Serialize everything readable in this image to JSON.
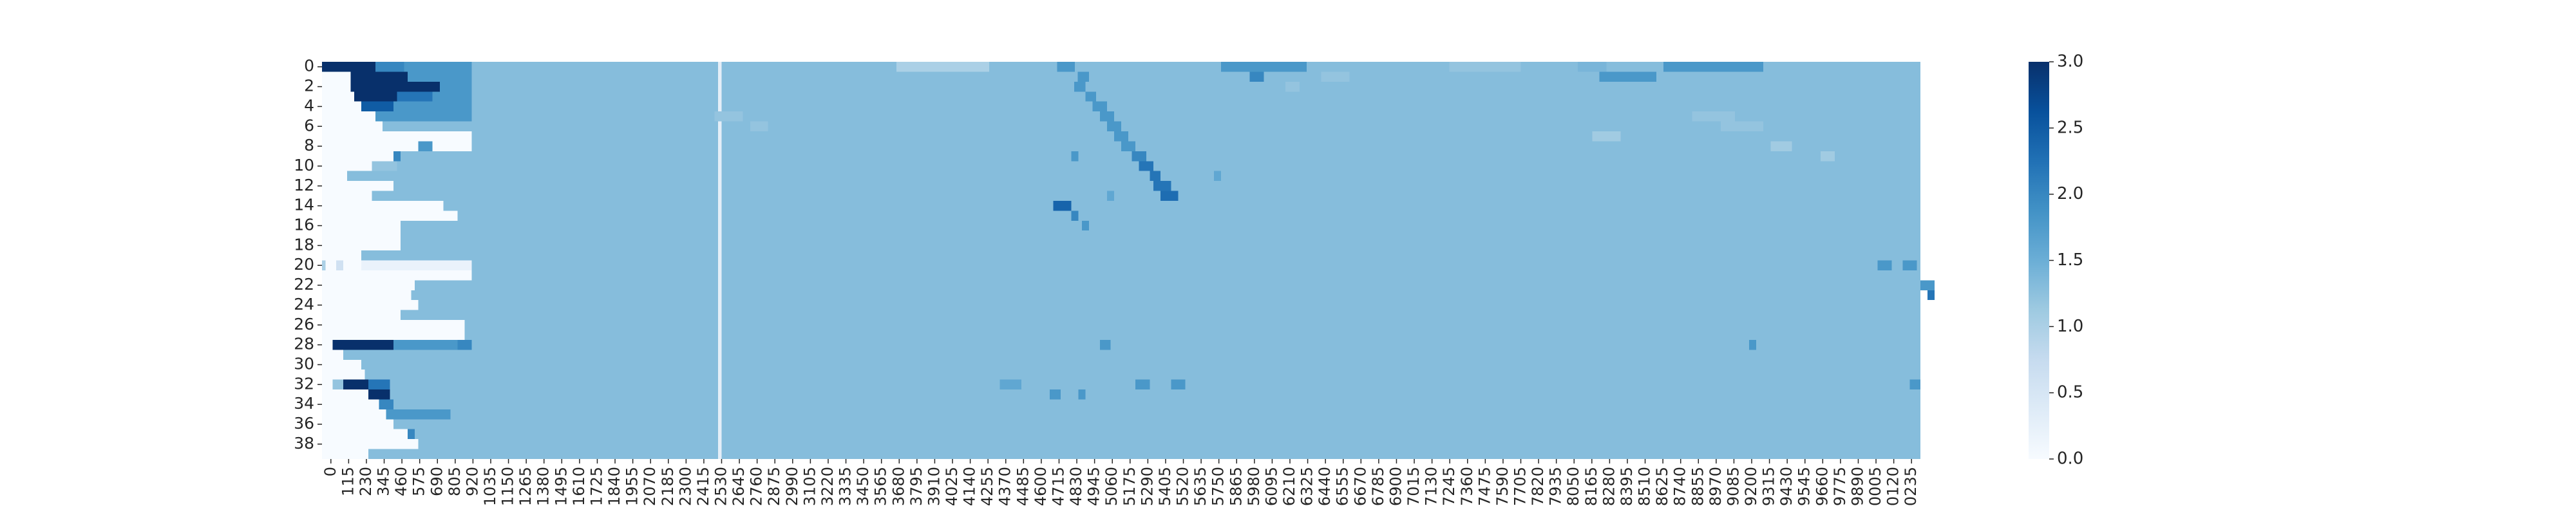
{
  "chart_data": {
    "type": "heatmap",
    "title": "",
    "xlabel": "",
    "ylabel": "",
    "colormap": "Blues",
    "color_low": "#f7fbff",
    "color_high": "#08306b",
    "vmin": 0.0,
    "vmax": 3.0,
    "n_rows": 40,
    "n_cols": 2240,
    "y_tick_labels": [
      "0",
      "2",
      "4",
      "6",
      "8",
      "10",
      "12",
      "14",
      "16",
      "18",
      "20",
      "22",
      "24",
      "26",
      "28",
      "30",
      "32",
      "34",
      "36",
      "38"
    ],
    "y_tick_rows": [
      0,
      2,
      4,
      6,
      8,
      10,
      12,
      14,
      16,
      18,
      20,
      22,
      24,
      26,
      28,
      30,
      32,
      34,
      36,
      38
    ],
    "x_tick_labels": [
      "0",
      "115",
      "230",
      "345",
      "460",
      "575",
      "690",
      "805",
      "920",
      "1035",
      "1150",
      "1265",
      "1380",
      "1495",
      "1610",
      "1725",
      "1840",
      "1955",
      "2070",
      "2185",
      "2300",
      "2415",
      "2530",
      "2645",
      "2760",
      "2875",
      "2990",
      "3105",
      "3220",
      "3335",
      "3450",
      "3565",
      "3680",
      "3795",
      "3910",
      "4025",
      "4140",
      "4255",
      "4370",
      "4485",
      "4600",
      "4715",
      "4830",
      "4945",
      "5060",
      "5175",
      "5290",
      "5405",
      "5520",
      "5635",
      "5750",
      "5865",
      "5980",
      "6095",
      "6210",
      "6325",
      "6440",
      "6555",
      "6670",
      "6785",
      "6900",
      "7015",
      "7130",
      "7245",
      "7360",
      "7475",
      "7590",
      "7705",
      "7820",
      "7935",
      "8050",
      "8165",
      "8280",
      "8395",
      "8510",
      "8625",
      "8740",
      "8855",
      "8970",
      "9085",
      "9200",
      "9315",
      "9430",
      "9545",
      "9660",
      "9775",
      "9890",
      "0005",
      "0120",
      "0235"
    ],
    "colorbar_ticks": [
      "0.0",
      "0.5",
      "1.0",
      "1.5",
      "2.0",
      "2.5",
      "3.0"
    ],
    "colorbar_values": [
      0.0,
      0.5,
      1.0,
      1.5,
      2.0,
      2.5,
      3.0
    ],
    "background_value": 1.3,
    "rows": [
      [
        [
          0,
          45,
          3.0
        ],
        [
          45,
          75,
          3.0
        ],
        [
          75,
          115,
          2.0
        ],
        [
          115,
          210,
          1.8
        ]
      ],
      [
        [
          0,
          40,
          0.0
        ],
        [
          40,
          120,
          3.0
        ],
        [
          120,
          210,
          1.8
        ]
      ],
      [
        [
          0,
          40,
          0.0
        ],
        [
          40,
          130,
          3.0
        ],
        [
          130,
          165,
          3.0
        ],
        [
          165,
          210,
          1.8
        ]
      ],
      [
        [
          0,
          45,
          0.0
        ],
        [
          45,
          105,
          3.0
        ],
        [
          105,
          155,
          2.2
        ],
        [
          155,
          210,
          1.8
        ]
      ],
      [
        [
          0,
          55,
          0.0
        ],
        [
          55,
          100,
          2.5
        ],
        [
          100,
          210,
          1.8
        ]
      ],
      [
        [
          0,
          75,
          0.0
        ],
        [
          75,
          210,
          1.8
        ]
      ],
      [
        [
          0,
          85,
          0.0
        ],
        [
          85,
          210,
          1.3
        ]
      ],
      [
        [
          0,
          210,
          0.0
        ]
      ],
      [
        [
          0,
          210,
          0.0
        ]
      ],
      [
        [
          0,
          100,
          0.0
        ],
        [
          100,
          110,
          2.0
        ],
        [
          110,
          210,
          1.3
        ]
      ],
      [
        [
          0,
          70,
          0.0
        ],
        [
          70,
          105,
          1.2
        ],
        [
          105,
          210,
          1.3
        ]
      ],
      [
        [
          0,
          35,
          0.0
        ],
        [
          35,
          210,
          1.3
        ]
      ],
      [
        [
          0,
          100,
          0.0
        ],
        [
          100,
          210,
          1.3
        ]
      ],
      [
        [
          0,
          70,
          0.0
        ],
        [
          70,
          210,
          1.3
        ]
      ],
      [
        [
          0,
          170,
          0.0
        ],
        [
          170,
          210,
          1.3
        ]
      ],
      [
        [
          0,
          190,
          0.0
        ],
        [
          190,
          210,
          1.3
        ]
      ],
      [
        [
          0,
          110,
          0.0
        ],
        [
          110,
          210,
          1.3
        ]
      ],
      [
        [
          0,
          110,
          0.0
        ],
        [
          110,
          210,
          1.3
        ]
      ],
      [
        [
          0,
          110,
          0.0
        ],
        [
          110,
          210,
          1.3
        ]
      ],
      [
        [
          0,
          55,
          0.0
        ],
        [
          55,
          210,
          1.3
        ]
      ],
      [
        [
          0,
          5,
          1.0
        ],
        [
          5,
          20,
          0.0
        ],
        [
          20,
          30,
          0.6
        ],
        [
          30,
          55,
          0.0
        ],
        [
          55,
          210,
          0.2
        ]
      ],
      [
        [
          0,
          210,
          0.0
        ]
      ],
      [
        [
          0,
          130,
          0.0
        ],
        [
          130,
          210,
          1.3
        ]
      ],
      [
        [
          0,
          125,
          0.0
        ],
        [
          125,
          210,
          1.3
        ]
      ],
      [
        [
          0,
          135,
          0.0
        ],
        [
          135,
          210,
          1.3
        ]
      ],
      [
        [
          0,
          110,
          0.0
        ],
        [
          110,
          210,
          1.3
        ]
      ],
      [
        [
          0,
          200,
          0.0
        ],
        [
          200,
          210,
          1.3
        ]
      ],
      [
        [
          0,
          200,
          0.0
        ],
        [
          200,
          210,
          1.3
        ]
      ],
      [
        [
          0,
          15,
          0.0
        ],
        [
          15,
          35,
          3.0
        ],
        [
          35,
          100,
          3.0
        ],
        [
          100,
          190,
          1.8
        ],
        [
          190,
          210,
          2.0
        ]
      ],
      [
        [
          0,
          30,
          0.0
        ],
        [
          30,
          210,
          1.3
        ]
      ],
      [
        [
          0,
          55,
          0.0
        ],
        [
          55,
          210,
          1.3
        ]
      ],
      [
        [
          0,
          60,
          0.0
        ],
        [
          60,
          210,
          1.3
        ]
      ],
      [
        [
          0,
          15,
          0.0
        ],
        [
          15,
          30,
          1.2
        ],
        [
          30,
          65,
          3.0
        ],
        [
          65,
          95,
          2.2
        ],
        [
          95,
          210,
          1.3
        ]
      ],
      [
        [
          0,
          65,
          0.0
        ],
        [
          65,
          95,
          3.0
        ],
        [
          95,
          210,
          1.3
        ]
      ],
      [
        [
          0,
          80,
          0.0
        ],
        [
          80,
          100,
          2.0
        ],
        [
          100,
          210,
          1.3
        ]
      ],
      [
        [
          0,
          90,
          0.0
        ],
        [
          90,
          180,
          1.8
        ],
        [
          180,
          210,
          1.3
        ]
      ],
      [
        [
          0,
          100,
          0.0
        ],
        [
          100,
          210,
          1.3
        ]
      ],
      [
        [
          0,
          120,
          0.0
        ],
        [
          120,
          130,
          2.0
        ],
        [
          130,
          210,
          1.3
        ]
      ],
      [
        [
          0,
          135,
          0.0
        ],
        [
          135,
          210,
          1.3
        ]
      ],
      [
        [
          0,
          65,
          0.0
        ],
        [
          65,
          210,
          1.3
        ]
      ]
    ],
    "highlights": [
      [
        0,
        805,
        935,
        1.0
      ],
      [
        0,
        805,
        935,
        1.0
      ],
      [
        1,
        1790,
        1870,
        1.8
      ],
      [
        0,
        1645,
        1660,
        1.8
      ],
      [
        0,
        1030,
        1055,
        1.8
      ],
      [
        2,
        1054,
        1070,
        1.8
      ],
      [
        1,
        1059,
        1075,
        1.8
      ],
      [
        3,
        1070,
        1085,
        1.8
      ],
      [
        4,
        1080,
        1100,
        1.8
      ],
      [
        5,
        1090,
        1110,
        1.8
      ],
      [
        6,
        1100,
        1120,
        1.8
      ],
      [
        7,
        1110,
        1130,
        1.8
      ],
      [
        8,
        1120,
        1140,
        1.8
      ],
      [
        9,
        1135,
        1155,
        2.0
      ],
      [
        10,
        1145,
        1165,
        2.2
      ],
      [
        11,
        1160,
        1175,
        2.2
      ],
      [
        12,
        1165,
        1190,
        2.2
      ],
      [
        13,
        1175,
        1200,
        2.3
      ],
      [
        0,
        1260,
        1380,
        1.8
      ],
      [
        1,
        1300,
        1320,
        2.0
      ],
      [
        2,
        1350,
        1370,
        1.2
      ],
      [
        1,
        1400,
        1440,
        1.2
      ],
      [
        0,
        1580,
        1680,
        1.2
      ],
      [
        0,
        1760,
        1800,
        1.4
      ],
      [
        0,
        1880,
        1940,
        1.8
      ],
      [
        0,
        1940,
        2020,
        1.8
      ],
      [
        7,
        1780,
        1820,
        1.1
      ],
      [
        9,
        1050,
        1060,
        1.8
      ],
      [
        11,
        1250,
        1260,
        1.6
      ],
      [
        14,
        1025,
        1050,
        2.4
      ],
      [
        15,
        1050,
        1060,
        2.0
      ],
      [
        16,
        1065,
        1075,
        1.8
      ],
      [
        13,
        1100,
        1110,
        1.6
      ],
      [
        20,
        2180,
        2200,
        1.8
      ],
      [
        20,
        2215,
        2235,
        1.8
      ],
      [
        22,
        2240,
        2260,
        1.8
      ],
      [
        23,
        2250,
        2260,
        2.2
      ],
      [
        5,
        1920,
        1980,
        1.2
      ],
      [
        6,
        1960,
        2020,
        1.2
      ],
      [
        8,
        2030,
        2060,
        1.1
      ],
      [
        9,
        2100,
        2120,
        1.1
      ],
      [
        5,
        550,
        590,
        1.2
      ],
      [
        6,
        600,
        625,
        1.2
      ],
      [
        8,
        135,
        155,
        1.8
      ],
      [
        28,
        1090,
        1105,
        1.8
      ],
      [
        32,
        950,
        980,
        1.6
      ],
      [
        32,
        1140,
        1160,
        1.8
      ],
      [
        32,
        1190,
        1210,
        1.8
      ],
      [
        32,
        2225,
        2240,
        1.8
      ],
      [
        33,
        1020,
        1035,
        1.8
      ],
      [
        33,
        1060,
        1070,
        1.8
      ],
      [
        28,
        2000,
        2010,
        1.8
      ]
    ],
    "special_rows": {
      "col_light_band": [
        555,
        560
      ]
    }
  },
  "colors": {
    "background": "#ffffff",
    "tick_text": "#262626"
  }
}
